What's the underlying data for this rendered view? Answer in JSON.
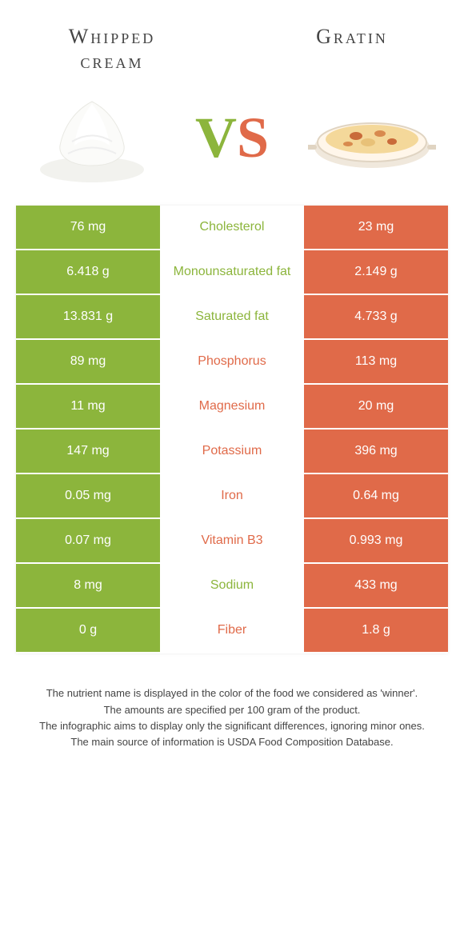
{
  "colors": {
    "green": "#8cb53c",
    "orange": "#e06a49",
    "white": "#ffffff",
    "text": "#444444"
  },
  "food_left": {
    "title": "Whipped cream"
  },
  "food_right": {
    "title": "Gratin"
  },
  "vs": {
    "v": "V",
    "s": "S"
  },
  "table": {
    "rows": [
      {
        "left": "76 mg",
        "nutrient": "Cholesterol",
        "right": "23 mg",
        "winner": "left"
      },
      {
        "left": "6.418 g",
        "nutrient": "Monounsaturated fat",
        "right": "2.149 g",
        "winner": "left"
      },
      {
        "left": "13.831 g",
        "nutrient": "Saturated fat",
        "right": "4.733 g",
        "winner": "left"
      },
      {
        "left": "89 mg",
        "nutrient": "Phosphorus",
        "right": "113 mg",
        "winner": "right"
      },
      {
        "left": "11 mg",
        "nutrient": "Magnesium",
        "right": "20 mg",
        "winner": "right"
      },
      {
        "left": "147 mg",
        "nutrient": "Potassium",
        "right": "396 mg",
        "winner": "right"
      },
      {
        "left": "0.05 mg",
        "nutrient": "Iron",
        "right": "0.64 mg",
        "winner": "right"
      },
      {
        "left": "0.07 mg",
        "nutrient": "Vitamin B3",
        "right": "0.993 mg",
        "winner": "right"
      },
      {
        "left": "8 mg",
        "nutrient": "Sodium",
        "right": "433 mg",
        "winner": "left"
      },
      {
        "left": "0 g",
        "nutrient": "Fiber",
        "right": "1.8 g",
        "winner": "right"
      }
    ]
  },
  "footer": {
    "line1": "The nutrient name is displayed in the color of the food we considered as 'winner'.",
    "line2": "The amounts are specified per 100 gram of the product.",
    "line3": "The infographic aims to display only the significant differences, ignoring minor ones.",
    "line4": "The main source of information is USDA Food Composition Database."
  }
}
